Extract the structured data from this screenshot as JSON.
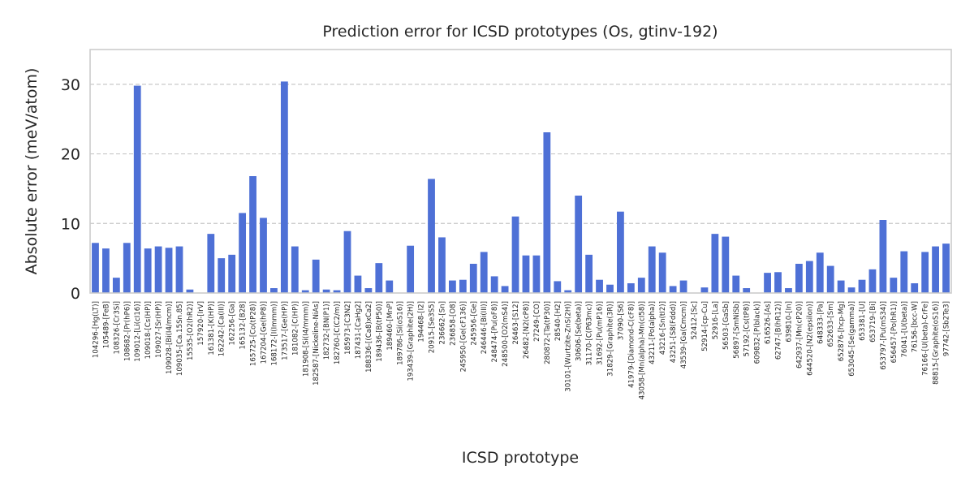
{
  "chart_data": {
    "type": "bar",
    "title": "Prediction error for ICSD prototypes (Os, gtinv-192)",
    "xlabel": "ICSD prototype",
    "ylabel": "Absolute error (meV/atom)",
    "ylim": [
      0,
      35
    ],
    "yticks": [
      0,
      10,
      20,
      30
    ],
    "grid": "horizontal-dashed",
    "bar_color": "#4e70d6",
    "categories": [
      "104296-[Hg(LT)]",
      "105489-[FeB]",
      "108326-[Cr3Si]",
      "108682-[Pr(hP6)]",
      "109012-[Li(cI16)]",
      "109018-[Cs(HP)]",
      "109027-[Sr(HP)]",
      "109028-[Bi(I4/mcm)]",
      "109035-[Ca.15Sn.85]",
      "15535-[O2(hR2)]",
      "157920-[IrV]",
      "161381-[K(HP)]",
      "162242-[Ca(III)]",
      "162256-[Ga]",
      "165132-[B28]",
      "165725-[Co(tP28)]",
      "167204-[Ge(hP8)]",
      "168172-[I(Immm)]",
      "173517-[Ge(HP)]",
      "181082-[C(HP)]",
      "181908-[Si(I4/mmm)]",
      "182587-[Nickeline-NiAs]",
      "182732-[BN(P1)]",
      "182760-[C(C2/m)]",
      "185973-[C3N2]",
      "187431-[CaHg2]",
      "188336-[(Ca8)xCa2]",
      "189436-[B(tP50)]",
      "189460-[MnP]",
      "189786-[Si(oS16)]",
      "193439-[Graphite(2H)]",
      "194468-[I2]",
      "20915-[Se3S5]",
      "236662-[Sn]",
      "236858-[O8]",
      "245950-[Ge(cF136)]",
      "245956-[Ge]",
      "246446-[Bi(III)]",
      "248474-[Pu(oF8)]",
      "248500-[O2(mS4)]",
      "26463-[S12]",
      "26482-[N2(cP8)]",
      "27249-[CO]",
      "280872-[Ta(tP30)]",
      "28540-[H2]",
      "30101-[Wurtzite-ZnS(2H)]",
      "30606-[Se(beta)]",
      "31170-[C(P63mc)]",
      "31692-[Pu(mP16)]",
      "31829-[Graphite(3R)]",
      "37090-[S6]",
      "41979-[Diamond-C(cF8)]",
      "43058-[Mn(alpha)-Mn(cI58)]",
      "43211-[Po(alpha)]",
      "43216-[Sn(tI2)]",
      "43251-[S8(Fddd)]",
      "43539-[Ga(Cmcm)]",
      "52412-[Sc]",
      "52914-[cp-Cu]",
      "52916-[La]",
      "56503-[GaSb]",
      "56897-[SmNiSb]",
      "57192-[Cs(tP8)]",
      "609832-[P(black)]",
      "616526-[As]",
      "62747-[B(hR12)]",
      "639810-[In]",
      "642937-[Mn(cP20)]",
      "644520-[N2(epsilon)]",
      "648333-[Pa]",
      "652633-[Sm]",
      "652876-[hcp-Mg]",
      "653045-[Se(gamma)]",
      "653381-[U]",
      "653719-[Bi]",
      "653797-[Pu(mS34)]",
      "656457-[Po(hR1)]",
      "76041-[U(beta)]",
      "76156-[bcc-W]",
      "76166-[U(beta)-CrFe]",
      "88815-[Graphite(oS16)]",
      "97742-[Sb2Te3]"
    ],
    "values": [
      7.2,
      6.4,
      2.2,
      7.2,
      29.8,
      6.4,
      6.7,
      6.5,
      6.7,
      0.5,
      0.0,
      8.5,
      5.0,
      5.5,
      11.5,
      16.8,
      10.8,
      0.7,
      30.4,
      6.7,
      0.4,
      4.8,
      0.5,
      0.4,
      8.9,
      2.5,
      0.7,
      4.3,
      1.8,
      0.0,
      6.8,
      0.0,
      16.4,
      8.0,
      1.8,
      1.9,
      4.2,
      5.9,
      2.4,
      1.0,
      11.0,
      5.4,
      5.4,
      23.1,
      1.7,
      0.4,
      14.0,
      5.5,
      1.9,
      1.2,
      11.7,
      1.4,
      2.2,
      6.7,
      5.8,
      1.0,
      1.8,
      0.0,
      0.8,
      8.5,
      8.1,
      2.5,
      0.7,
      0.0,
      2.9,
      3.0,
      0.7,
      4.2,
      4.6,
      5.8,
      3.9,
      1.8,
      0.8,
      1.9,
      3.4,
      10.5,
      2.2,
      6.0,
      1.4,
      5.9,
      6.7,
      7.1
    ]
  }
}
